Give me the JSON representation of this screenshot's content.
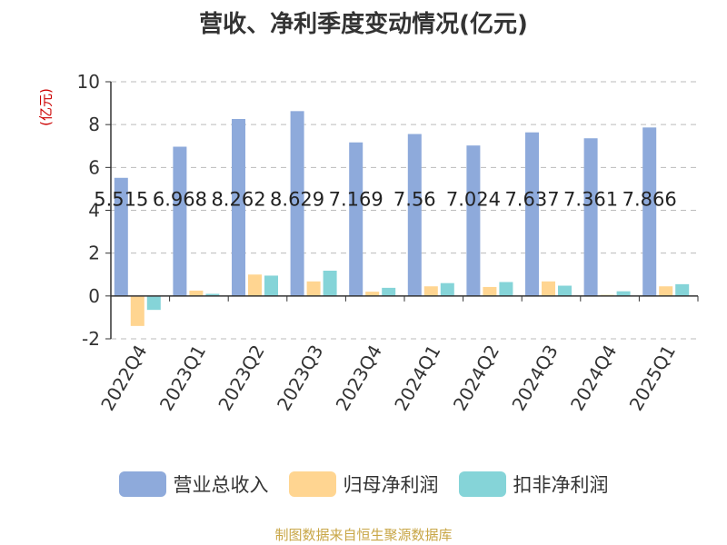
{
  "chart_data": {
    "type": "bar",
    "title": "营收、净利季度变动情况(亿元)",
    "ylabel": "(亿元)",
    "ylim": [
      -2,
      10
    ],
    "yticks": [
      -2,
      0,
      2,
      4,
      6,
      8,
      10
    ],
    "grid": true,
    "legend_position": "bottom",
    "categories": [
      "2022Q4",
      "2023Q1",
      "2023Q2",
      "2023Q3",
      "2023Q4",
      "2024Q1",
      "2024Q2",
      "2024Q3",
      "2024Q4",
      "2025Q1"
    ],
    "series": [
      {
        "name": "营业总收入",
        "color": "#8eaadb",
        "values": [
          5.515,
          6.968,
          8.262,
          8.629,
          7.169,
          7.56,
          7.024,
          7.637,
          7.361,
          7.866
        ],
        "labels": [
          "5.515",
          "6.968",
          "8.262",
          "8.629",
          "7.169",
          "7.56",
          "7.024",
          "7.637",
          "7.361",
          "7.866"
        ]
      },
      {
        "name": "归母净利润",
        "color": "#ffd591",
        "values": [
          -1.4,
          0.25,
          1.0,
          0.68,
          0.2,
          0.45,
          0.42,
          0.68,
          0.05,
          0.45
        ]
      },
      {
        "name": "扣非净利润",
        "color": "#85d4d8",
        "values": [
          -0.65,
          0.1,
          0.95,
          1.18,
          0.38,
          0.6,
          0.65,
          0.48,
          0.22,
          0.55
        ]
      }
    ]
  },
  "source": "制图数据来自恒生聚源数据库"
}
